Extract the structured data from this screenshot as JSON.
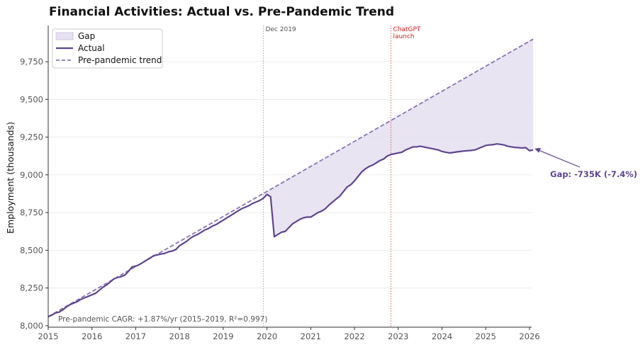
{
  "chart_data": {
    "type": "line",
    "title": "Financial Activities: Actual vs. Pre-Pandemic Trend",
    "xlabel": "",
    "ylabel": "Employment (thousands)",
    "xlim": [
      2015,
      2026.05
    ],
    "ylim": [
      7990,
      9990
    ],
    "x_ticks": [
      2015,
      2016,
      2017,
      2018,
      2019,
      2020,
      2021,
      2022,
      2023,
      2024,
      2025,
      2026
    ],
    "x_tick_labels": [
      "2015",
      "2016",
      "2017",
      "2018",
      "2019",
      "2020",
      "2021",
      "2022",
      "2023",
      "2024",
      "2025",
      "2026"
    ],
    "y_ticks": [
      8000,
      8250,
      8500,
      8750,
      9000,
      9250,
      9500,
      9750
    ],
    "y_tick_labels": [
      "8,000",
      "8,250",
      "8,500",
      "8,750",
      "9,000",
      "9,250",
      "9,500",
      "9,750"
    ],
    "grid": "horizontal",
    "legend": {
      "placement": "top-left",
      "entries": [
        {
          "label": "Gap",
          "style": "fill"
        },
        {
          "label": "Actual",
          "style": "solid"
        },
        {
          "label": "Pre-pandemic trend",
          "style": "dashed"
        }
      ]
    },
    "colors": {
      "actual": "#5e4590",
      "trend": "#8b73b8",
      "gap_fill": "#e6e1f1",
      "event_dec2019": "#c4a0b0",
      "event_chatgpt": "#e06060",
      "event_chatgpt_text": "#cc2020",
      "grid": "#ececec"
    },
    "series": [
      {
        "name": "Actual",
        "x": [
          2015.0,
          2015.083,
          2015.167,
          2015.25,
          2015.333,
          2015.417,
          2015.5,
          2015.583,
          2015.667,
          2015.75,
          2015.833,
          2015.917,
          2016.0,
          2016.083,
          2016.167,
          2016.25,
          2016.333,
          2016.417,
          2016.5,
          2016.583,
          2016.667,
          2016.75,
          2016.833,
          2016.917,
          2017.0,
          2017.083,
          2017.167,
          2017.25,
          2017.333,
          2017.417,
          2017.5,
          2017.583,
          2017.667,
          2017.75,
          2017.833,
          2017.917,
          2018.0,
          2018.083,
          2018.167,
          2018.25,
          2018.333,
          2018.417,
          2018.5,
          2018.583,
          2018.667,
          2018.75,
          2018.833,
          2018.917,
          2019.0,
          2019.083,
          2019.167,
          2019.25,
          2019.333,
          2019.417,
          2019.5,
          2019.583,
          2019.667,
          2019.75,
          2019.833,
          2019.917,
          2020.0,
          2020.083,
          2020.167,
          2020.25,
          2020.333,
          2020.417,
          2020.5,
          2020.583,
          2020.667,
          2020.75,
          2020.833,
          2020.917,
          2021.0,
          2021.083,
          2021.167,
          2021.25,
          2021.333,
          2021.417,
          2021.5,
          2021.583,
          2021.667,
          2021.75,
          2021.833,
          2021.917,
          2022.0,
          2022.083,
          2022.167,
          2022.25,
          2022.333,
          2022.417,
          2022.5,
          2022.583,
          2022.667,
          2022.75,
          2022.833,
          2022.917,
          2023.0,
          2023.083,
          2023.167,
          2023.25,
          2023.333,
          2023.417,
          2023.5,
          2023.583,
          2023.667,
          2023.75,
          2023.833,
          2023.917,
          2024.0,
          2024.083,
          2024.167,
          2024.25,
          2024.333,
          2024.417,
          2024.5,
          2024.583,
          2024.667,
          2024.75,
          2024.833,
          2024.917,
          2025.0,
          2025.083,
          2025.167,
          2025.25,
          2025.333,
          2025.417,
          2025.5,
          2025.583,
          2025.667,
          2025.75,
          2025.833,
          2025.917,
          2026.0,
          2026.083
        ],
        "values": [
          8060,
          8070,
          8085,
          8090,
          8105,
          8125,
          8140,
          8150,
          8160,
          8175,
          8185,
          8195,
          8205,
          8215,
          8235,
          8255,
          8270,
          8290,
          8310,
          8320,
          8325,
          8335,
          8360,
          8390,
          8395,
          8405,
          8420,
          8435,
          8450,
          8465,
          8470,
          8475,
          8480,
          8490,
          8495,
          8505,
          8530,
          8545,
          8560,
          8580,
          8595,
          8605,
          8620,
          8635,
          8645,
          8660,
          8670,
          8685,
          8700,
          8715,
          8730,
          8745,
          8760,
          8775,
          8785,
          8795,
          8810,
          8820,
          8830,
          8845,
          8870,
          8855,
          8590,
          8605,
          8620,
          8625,
          8650,
          8675,
          8690,
          8705,
          8715,
          8720,
          8720,
          8735,
          8750,
          8760,
          8775,
          8800,
          8820,
          8840,
          8860,
          8890,
          8920,
          8935,
          8960,
          8990,
          9020,
          9040,
          9055,
          9065,
          9080,
          9095,
          9105,
          9125,
          9135,
          9140,
          9145,
          9150,
          9165,
          9175,
          9185,
          9185,
          9190,
          9185,
          9180,
          9175,
          9170,
          9165,
          9155,
          9150,
          9145,
          9148,
          9152,
          9155,
          9158,
          9160,
          9162,
          9165,
          9175,
          9185,
          9195,
          9198,
          9200,
          9205,
          9202,
          9198,
          9190,
          9185,
          9182,
          9180,
          9178,
          9180,
          9160,
          9165
        ]
      },
      {
        "name": "Pre-pandemic trend",
        "x": [
          2015.0,
          2026.083
        ],
        "values": [
          8060,
          9900
        ]
      }
    ],
    "events": [
      {
        "x": 2019.917,
        "label": "Dec 2019"
      },
      {
        "x": 2022.833,
        "label_lines": [
          "ChatGPT",
          "launch"
        ]
      }
    ],
    "annotations": {
      "gap_text": "Gap: -735K (-7.4%)",
      "gap_point": {
        "x": 2026.083,
        "y": 9165
      },
      "note": "Pre-pandemic CAGR: +1.87%/yr (2015–2019, R²=0.997)"
    }
  }
}
